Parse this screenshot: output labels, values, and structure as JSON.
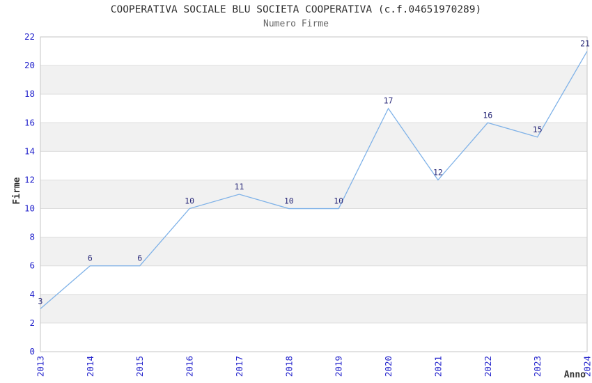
{
  "chart_data": {
    "type": "line",
    "title": "COOPERATIVA SOCIALE BLU SOCIETA COOPERATIVA (c.f.04651970289)",
    "subtitle": "Numero Firme",
    "xlabel": "Anno",
    "ylabel": "Firme",
    "categories": [
      "2013",
      "2014",
      "2015",
      "2016",
      "2017",
      "2018",
      "2019",
      "2020",
      "2021",
      "2022",
      "2023",
      "2024"
    ],
    "series": [
      {
        "name": "Numero Firme",
        "values": [
          3,
          6,
          6,
          10,
          11,
          10,
          10,
          17,
          12,
          16,
          15,
          21
        ]
      }
    ],
    "ylim": [
      0,
      22
    ],
    "ytick_step": 2,
    "grid": "horizontal",
    "banded_background": true,
    "show_point_labels": true,
    "legend": "none"
  },
  "style": {
    "background": "#ffffff",
    "line_color": "#7fb2e8",
    "tick_label_color": "#2323cc",
    "point_label_color": "#2b2b7a",
    "title_color": "#2e2e2e",
    "subtitle_color": "#666666",
    "axis_title_color": "#333333",
    "band_color": "#f1f1f1",
    "grid_color": "#dcdcdc",
    "border_color": "#c6c6c6"
  }
}
